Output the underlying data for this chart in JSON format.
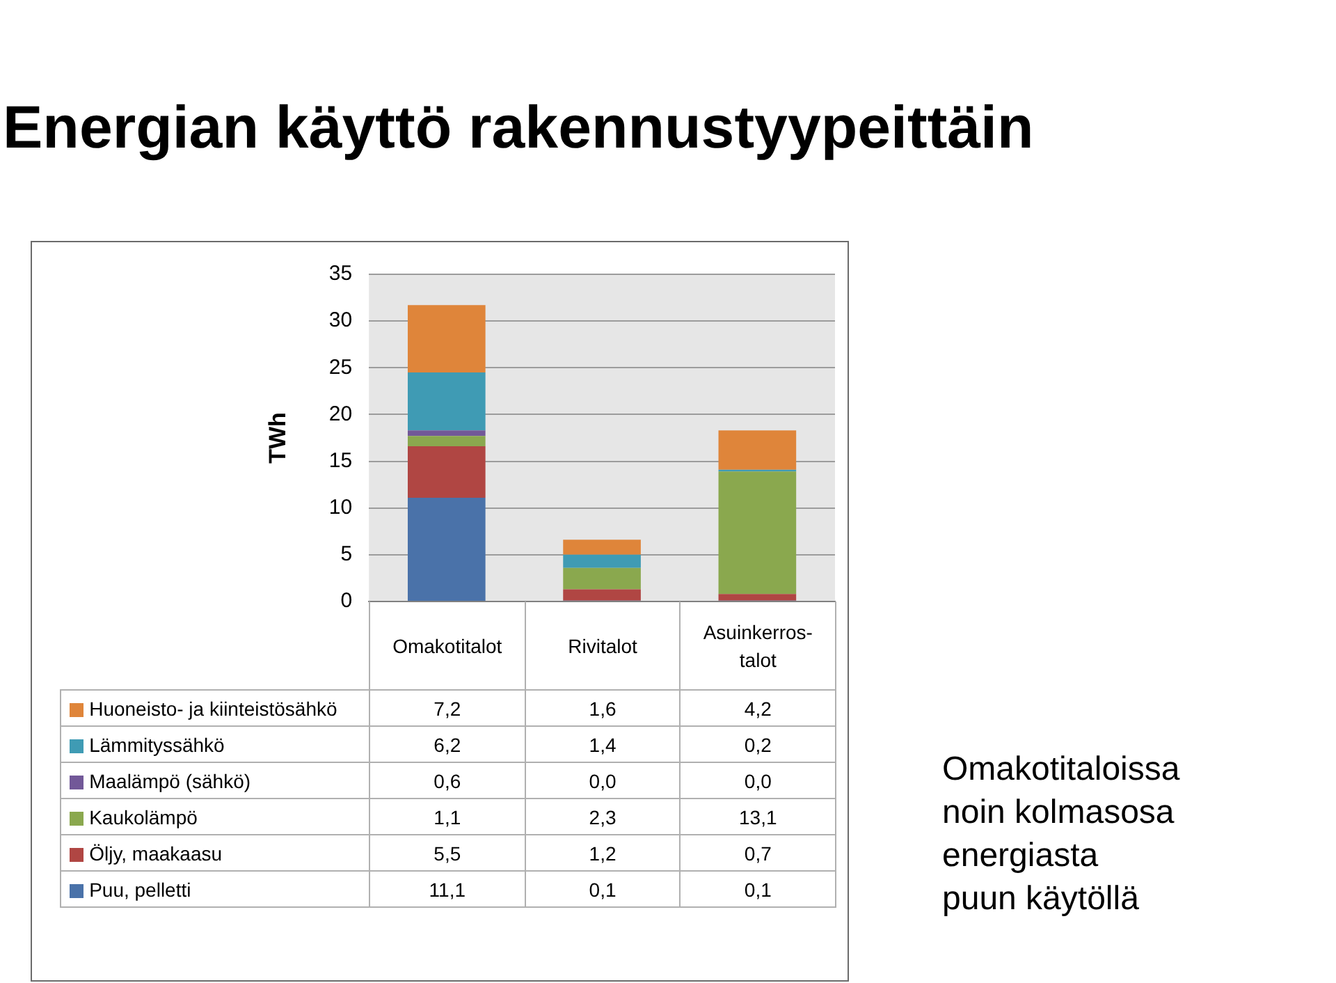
{
  "chart_data": {
    "type": "bar",
    "title": "Energian käyttö rakennustyypeittäin",
    "ylabel": "TWh",
    "categories": [
      "Omakotitalot",
      "Rivitalot",
      "Asuinkerros-talot"
    ],
    "series": [
      {
        "name": "Puu, pelletti",
        "color": "#4a72a9",
        "values": [
          11.1,
          0.1,
          0.1
        ],
        "value_labels": [
          "11,1",
          "0,1",
          "0,1"
        ]
      },
      {
        "name": "Öljy, maakaasu",
        "color": "#b04643",
        "values": [
          5.5,
          1.2,
          0.7
        ],
        "value_labels": [
          "5,5",
          "1,2",
          "0,7"
        ]
      },
      {
        "name": "Kaukolämpö",
        "color": "#8aa84e",
        "values": [
          1.1,
          2.3,
          13.1
        ],
        "value_labels": [
          "1,1",
          "2,3",
          "13,1"
        ]
      },
      {
        "name": "Maalämpö (sähkö)",
        "color": "#725898",
        "values": [
          0.6,
          0.0,
          0.0
        ],
        "value_labels": [
          "0,6",
          "0,0",
          "0,0"
        ]
      },
      {
        "name": "Lämmityssähkö",
        "color": "#3f9bb4",
        "values": [
          6.2,
          1.4,
          0.2
        ],
        "value_labels": [
          "6,2",
          "1,4",
          "0,2"
        ]
      },
      {
        "name": "Huoneisto- ja kiinteistösähkö",
        "color": "#df853a",
        "values": [
          7.2,
          1.6,
          4.2
        ],
        "value_labels": [
          "7,2",
          "1,6",
          "4,2"
        ]
      }
    ],
    "stacked": true,
    "ylim": [
      0,
      35
    ],
    "yticks": [
      0,
      5,
      10,
      15,
      20,
      25,
      30,
      35
    ],
    "grid": "y",
    "legend": "bottom left",
    "annotations": [
      "Omakotitaloissa\nnoin kolmasosa\nenergiasta\npuun käytöllä"
    ]
  }
}
